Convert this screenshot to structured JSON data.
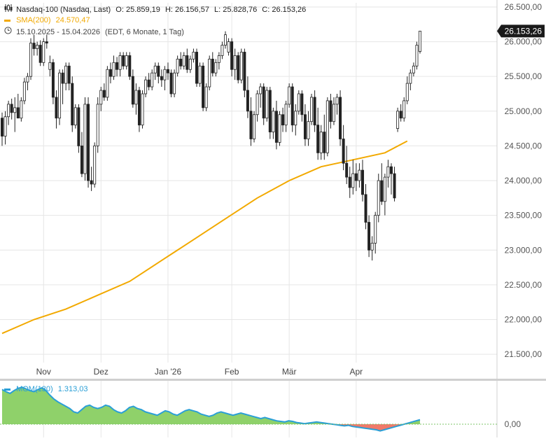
{
  "header": {
    "instrument": "Nasdaq-100 (Nasdaq, Last)",
    "open_label": "O:",
    "open": "25.859,19",
    "high_label": "H:",
    "high": "26.156,57",
    "low_label": "L:",
    "low": "25.828,76",
    "close_label": "C:",
    "close": "26.153,26",
    "sma_label": "SMA(200)",
    "sma_value": "24.570,47",
    "date_range": "15.10.2025 - 15.04.2026",
    "settings": "(EDT, 6 Monate, 1 Tag)",
    "last_price_tag": "26.153,26"
  },
  "icons": {
    "instrument": "candlestick-icon",
    "sma": "line-swatch-icon",
    "range": "clock-icon"
  },
  "colors": {
    "up": "#ffffff",
    "down": "#222222",
    "sma": "#f2a900",
    "mom_line": "#2a9fd6",
    "mom_pos": "#8fd16a",
    "mom_neg": "#f07a6a",
    "grid": "#e6e6e6",
    "tag": "#1a1a1a"
  },
  "momentum": {
    "label": "MOM(130)",
    "value": "1.313,03",
    "zero_label": "0,00"
  },
  "chart_data": {
    "type": "candlestick",
    "y_axis_side": "right",
    "ylim": [
      21380,
      26560
    ],
    "yticks": [
      21500,
      22000,
      22500,
      23000,
      23500,
      24000,
      24500,
      25000,
      25500,
      26000,
      26500
    ],
    "ytick_labels": [
      "21.500,00",
      "22.000,00",
      "22.500,00",
      "23.000,00",
      "23.500,00",
      "24.000,00",
      "24.500,00",
      "25.000,00",
      "25.500,00",
      "26.000,00",
      "26.500,00"
    ],
    "xticks": [
      {
        "label": "Nov",
        "index": 13
      },
      {
        "label": "Dez",
        "index": 31
      },
      {
        "label": "Jan '26",
        "index": 52
      },
      {
        "label": "Feb",
        "index": 72
      },
      {
        "label": "Mär",
        "index": 90
      },
      {
        "label": "Apr",
        "index": 111
      }
    ],
    "candles": [
      [
        24900,
        24980,
        24500,
        24640
      ],
      [
        24640,
        25000,
        24520,
        24920
      ],
      [
        24920,
        25150,
        24800,
        25100
      ],
      [
        25100,
        25180,
        24880,
        24980
      ],
      [
        24980,
        25200,
        24700,
        25050
      ],
      [
        25050,
        25250,
        24900,
        24900
      ],
      [
        24900,
        25200,
        24850,
        25150
      ],
      [
        25150,
        25480,
        25100,
        25420
      ],
      [
        25420,
        25550,
        25300,
        25500
      ],
      [
        25500,
        26050,
        25450,
        25980
      ],
      [
        25980,
        26100,
        25800,
        25900
      ],
      [
        25900,
        26000,
        25800,
        25950
      ],
      [
        25950,
        26020,
        25650,
        25700
      ],
      [
        25700,
        26050,
        25650,
        26000
      ],
      [
        26000,
        26100,
        25900,
        25980
      ],
      [
        25600,
        25800,
        25500,
        25700
      ],
      [
        25700,
        25750,
        25100,
        25200
      ],
      [
        25200,
        25300,
        24750,
        24900
      ],
      [
        24900,
        25600,
        24800,
        25550
      ],
      [
        25550,
        25600,
        25100,
        25400
      ],
      [
        25400,
        25700,
        25300,
        25650
      ],
      [
        25650,
        25700,
        25300,
        25400
      ],
      [
        25400,
        25500,
        24700,
        24800
      ],
      [
        24800,
        25100,
        24750,
        25050
      ],
      [
        25050,
        25100,
        24400,
        24500
      ],
      [
        24500,
        24700,
        24050,
        24100
      ],
      [
        24100,
        25200,
        24000,
        25100
      ],
      [
        25100,
        25200,
        23900,
        24000
      ],
      [
        24000,
        24200,
        23850,
        23950
      ],
      [
        23950,
        24550,
        23900,
        24500
      ],
      [
        24500,
        25200,
        24400,
        25100
      ],
      [
        25100,
        25350,
        25000,
        25300
      ],
      [
        25300,
        25400,
        25150,
        25200
      ],
      [
        25200,
        25650,
        25150,
        25600
      ],
      [
        25600,
        25700,
        25400,
        25500
      ],
      [
        25500,
        25800,
        25450,
        25700
      ],
      [
        25700,
        25780,
        25500,
        25600
      ],
      [
        25600,
        25850,
        25500,
        25800
      ],
      [
        25800,
        25850,
        25600,
        25650
      ],
      [
        25650,
        25850,
        25600,
        25800
      ],
      [
        25800,
        25850,
        25450,
        25500
      ],
      [
        25500,
        25600,
        25050,
        25100
      ],
      [
        25100,
        25400,
        24950,
        25300
      ],
      [
        25300,
        25350,
        24700,
        24800
      ],
      [
        24800,
        25300,
        24750,
        25250
      ],
      [
        25250,
        25500,
        25200,
        25450
      ],
      [
        25450,
        25550,
        25300,
        25350
      ],
      [
        25350,
        25600,
        25300,
        25550
      ],
      [
        25550,
        25700,
        25450,
        25650
      ],
      [
        25650,
        25700,
        25400,
        25500
      ],
      [
        25500,
        25600,
        25350,
        25450
      ],
      [
        25450,
        25650,
        25300,
        25600
      ],
      [
        25600,
        25700,
        25450,
        25550
      ],
      [
        25550,
        25600,
        25200,
        25250
      ],
      [
        25250,
        25600,
        25200,
        25550
      ],
      [
        25550,
        25800,
        25500,
        25750
      ],
      [
        25750,
        25850,
        25600,
        25650
      ],
      [
        25650,
        25850,
        25600,
        25800
      ],
      [
        25800,
        25900,
        25550,
        25600
      ],
      [
        25600,
        25800,
        25550,
        25750
      ],
      [
        25750,
        25900,
        25700,
        25850
      ],
      [
        25850,
        25900,
        25350,
        25400
      ],
      [
        25400,
        25700,
        25350,
        25650
      ],
      [
        25650,
        25700,
        25000,
        25050
      ],
      [
        25050,
        25400,
        25000,
        25350
      ],
      [
        25350,
        25800,
        25300,
        25750
      ],
      [
        25750,
        25850,
        25500,
        25550
      ],
      [
        25550,
        25750,
        25500,
        25700
      ],
      [
        25700,
        25850,
        25600,
        25800
      ],
      [
        25800,
        26000,
        25750,
        25950
      ],
      [
        25950,
        26150,
        25900,
        26100
      ],
      [
        25850,
        26050,
        25800,
        26000
      ],
      [
        26000,
        26050,
        25500,
        25600
      ],
      [
        25600,
        25900,
        25450,
        25800
      ],
      [
        25800,
        25850,
        25400,
        25450
      ],
      [
        25450,
        25900,
        25400,
        25850
      ],
      [
        25850,
        25900,
        25200,
        25300
      ],
      [
        25300,
        25500,
        24900,
        25000
      ],
      [
        25000,
        25200,
        24500,
        24600
      ],
      [
        24600,
        25000,
        24550,
        24950
      ],
      [
        24950,
        25300,
        24850,
        25250
      ],
      [
        25250,
        25400,
        25050,
        25350
      ],
      [
        25350,
        25400,
        24800,
        24900
      ],
      [
        24900,
        25350,
        24850,
        25300
      ],
      [
        25300,
        25350,
        24600,
        24700
      ],
      [
        24700,
        25050,
        24600,
        25000
      ],
      [
        25000,
        25150,
        24450,
        24550
      ],
      [
        24550,
        25000,
        24500,
        24950
      ],
      [
        24950,
        25050,
        24700,
        24800
      ],
      [
        24800,
        25150,
        24700,
        25100
      ],
      [
        25100,
        25400,
        25050,
        25350
      ],
      [
        25350,
        25400,
        24700,
        24800
      ],
      [
        24800,
        25100,
        24650,
        25000
      ],
      [
        25000,
        25300,
        24950,
        25250
      ],
      [
        25250,
        25300,
        24850,
        24950
      ],
      [
        24950,
        25100,
        24500,
        24600
      ],
      [
        24600,
        25000,
        24500,
        24850
      ],
      [
        24850,
        25250,
        24800,
        25200
      ],
      [
        25200,
        25300,
        24700,
        24800
      ],
      [
        24800,
        25050,
        24300,
        24400
      ],
      [
        24400,
        24800,
        24300,
        24700
      ],
      [
        24700,
        24950,
        24300,
        24400
      ],
      [
        24400,
        25200,
        24350,
        25150
      ],
      [
        25150,
        25250,
        24750,
        24850
      ],
      [
        24850,
        25200,
        24800,
        25100
      ],
      [
        25100,
        25250,
        24950,
        25200
      ],
      [
        25200,
        25300,
        24500,
        24600
      ],
      [
        24600,
        24800,
        24150,
        24250
      ],
      [
        24250,
        24500,
        23950,
        24050
      ],
      [
        24050,
        24200,
        23750,
        23900
      ],
      [
        23900,
        24300,
        23800,
        24100
      ],
      [
        24100,
        24250,
        23850,
        24000
      ],
      [
        24000,
        24250,
        23900,
        24150
      ],
      [
        24150,
        24300,
        23700,
        23800
      ],
      [
        23800,
        23950,
        23300,
        23400
      ],
      [
        23400,
        23500,
        22900,
        23000
      ],
      [
        23000,
        23200,
        22850,
        23100
      ],
      [
        23100,
        23550,
        22950,
        23500
      ],
      [
        23500,
        24100,
        23400,
        24000
      ],
      [
        24000,
        24250,
        23650,
        23700
      ],
      [
        23700,
        24100,
        23500,
        24050
      ],
      [
        24050,
        24300,
        23900,
        24200
      ],
      [
        24200,
        24250,
        23800,
        24100
      ],
      [
        24100,
        24200,
        23700,
        23750
      ],
      [
        24750,
        25050,
        24700,
        25000
      ],
      [
        25000,
        25100,
        24850,
        24900
      ],
      [
        24900,
        25200,
        24850,
        25150
      ],
      [
        25150,
        25500,
        25100,
        25400
      ],
      [
        25400,
        25600,
        25300,
        25550
      ],
      [
        25550,
        25700,
        25500,
        25650
      ],
      [
        25650,
        26000,
        25600,
        25950
      ],
      [
        25859,
        26157,
        25829,
        26153
      ]
    ],
    "sma": [
      [
        0,
        21800
      ],
      [
        10,
        22000
      ],
      [
        20,
        22150
      ],
      [
        30,
        22350
      ],
      [
        40,
        22550
      ],
      [
        50,
        22850
      ],
      [
        60,
        23150
      ],
      [
        70,
        23450
      ],
      [
        80,
        23750
      ],
      [
        90,
        24000
      ],
      [
        100,
        24200
      ],
      [
        110,
        24300
      ],
      [
        120,
        24400
      ],
      [
        127,
        24570
      ]
    ],
    "momentum_series": [
      0.62,
      0.58,
      0.55,
      0.6,
      0.64,
      0.66,
      0.63,
      0.6,
      0.58,
      0.62,
      0.65,
      0.6,
      0.52,
      0.45,
      0.4,
      0.36,
      0.32,
      0.28,
      0.22,
      0.2,
      0.26,
      0.32,
      0.34,
      0.3,
      0.28,
      0.3,
      0.34,
      0.32,
      0.26,
      0.22,
      0.2,
      0.24,
      0.3,
      0.32,
      0.28,
      0.26,
      0.22,
      0.2,
      0.18,
      0.16,
      0.2,
      0.24,
      0.22,
      0.18,
      0.16,
      0.2,
      0.24,
      0.26,
      0.24,
      0.22,
      0.18,
      0.16,
      0.14,
      0.16,
      0.2,
      0.22,
      0.2,
      0.18,
      0.16,
      0.18,
      0.2,
      0.18,
      0.16,
      0.14,
      0.12,
      0.1,
      0.12,
      0.1,
      0.08,
      0.06,
      0.05,
      0.04,
      0.06,
      0.05,
      0.03,
      0.02,
      0.01,
      0.02,
      0.03,
      0.04,
      0.03,
      0.02,
      0.01,
      0.0,
      -0.01,
      -0.02,
      -0.03,
      -0.02,
      -0.04,
      -0.05,
      -0.06,
      -0.07,
      -0.08,
      -0.09,
      -0.1,
      -0.12,
      -0.1,
      -0.08,
      -0.06,
      -0.04,
      -0.02,
      0.0,
      0.02,
      0.04,
      0.06,
      0.08
    ]
  }
}
